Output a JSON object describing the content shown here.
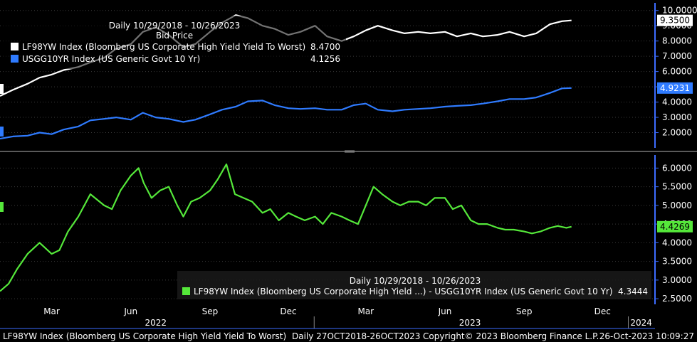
{
  "chart_data": [
    {
      "type": "line",
      "header": {
        "range": "Daily 10/29/2018 - 10/26/2023",
        "field": "Bid Price"
      },
      "ylim": [
        1.0,
        10.5
      ],
      "yticks": [
        "2.0000",
        "3.0000",
        "4.0000",
        "5.0000",
        "6.0000",
        "7.0000",
        "8.0000",
        "9.0000",
        "10.0000"
      ],
      "tick_values": [
        2,
        3,
        4,
        5,
        6,
        7,
        8,
        9,
        10
      ],
      "series": [
        {
          "name": "LF98YW Index (Bloomberg US Corporate High Yield Yield To Worst)",
          "legend_value": "8.4700",
          "last_label": "9.3500",
          "color": "#ffffff",
          "x": [
            "2021-12-31",
            "2022-01-15",
            "2022-02-01",
            "2022-02-15",
            "2022-03-01",
            "2022-03-15",
            "2022-04-01",
            "2022-04-15",
            "2022-05-01",
            "2022-05-15",
            "2022-06-01",
            "2022-06-15",
            "2022-06-30",
            "2022-07-15",
            "2022-08-01",
            "2022-08-15",
            "2022-09-01",
            "2022-09-15",
            "2022-10-01",
            "2022-10-15",
            "2022-11-01",
            "2022-11-15",
            "2022-12-01",
            "2022-12-15",
            "2023-01-01",
            "2023-01-15",
            "2023-02-01",
            "2023-02-15",
            "2023-03-01",
            "2023-03-15",
            "2023-04-01",
            "2023-04-15",
            "2023-05-01",
            "2023-05-15",
            "2023-06-01",
            "2023-06-15",
            "2023-07-01",
            "2023-07-15",
            "2023-08-01",
            "2023-08-15",
            "2023-09-01",
            "2023-09-15",
            "2023-10-01",
            "2023-10-15",
            "2023-10-26"
          ],
          "values": [
            4.4,
            4.8,
            5.2,
            5.6,
            5.8,
            6.1,
            6.3,
            6.6,
            6.9,
            7.5,
            7.8,
            8.6,
            8.9,
            8.4,
            7.6,
            7.8,
            8.6,
            9.2,
            9.7,
            9.5,
            9.0,
            8.8,
            8.4,
            8.6,
            9.0,
            8.3,
            8.0,
            8.3,
            8.7,
            9.0,
            8.7,
            8.5,
            8.6,
            8.5,
            8.6,
            8.3,
            8.5,
            8.3,
            8.4,
            8.6,
            8.3,
            8.5,
            9.1,
            9.3,
            9.35
          ]
        },
        {
          "name": "USGG10YR Index (US Generic Govt 10 Yr)",
          "legend_value": "4.1256",
          "last_label": "4.9231",
          "color": "#2f7bff",
          "x": [
            "2021-12-31",
            "2022-01-15",
            "2022-02-01",
            "2022-02-15",
            "2022-03-01",
            "2022-03-15",
            "2022-04-01",
            "2022-04-15",
            "2022-05-01",
            "2022-05-15",
            "2022-06-01",
            "2022-06-15",
            "2022-06-30",
            "2022-07-15",
            "2022-08-01",
            "2022-08-15",
            "2022-09-01",
            "2022-09-15",
            "2022-10-01",
            "2022-10-15",
            "2022-11-01",
            "2022-11-15",
            "2022-12-01",
            "2022-12-15",
            "2023-01-01",
            "2023-01-15",
            "2023-02-01",
            "2023-02-15",
            "2023-03-01",
            "2023-03-15",
            "2023-04-01",
            "2023-04-15",
            "2023-05-01",
            "2023-05-15",
            "2023-06-01",
            "2023-06-15",
            "2023-07-01",
            "2023-07-15",
            "2023-08-01",
            "2023-08-15",
            "2023-09-01",
            "2023-09-15",
            "2023-10-01",
            "2023-10-15",
            "2023-10-26"
          ],
          "values": [
            1.6,
            1.75,
            1.8,
            2.0,
            1.9,
            2.2,
            2.4,
            2.8,
            2.9,
            3.0,
            2.85,
            3.3,
            3.0,
            2.9,
            2.7,
            2.85,
            3.2,
            3.5,
            3.7,
            4.05,
            4.1,
            3.8,
            3.6,
            3.55,
            3.6,
            3.5,
            3.5,
            3.8,
            3.9,
            3.5,
            3.4,
            3.5,
            3.55,
            3.6,
            3.7,
            3.75,
            3.8,
            3.9,
            4.05,
            4.2,
            4.2,
            4.3,
            4.6,
            4.9,
            4.92
          ]
        }
      ]
    },
    {
      "type": "line",
      "header": {
        "range": "Daily 10/29/2018 - 10/26/2023"
      },
      "ylim": [
        2.35,
        6.35
      ],
      "yticks": [
        "2.5000",
        "3.0000",
        "3.5000",
        "4.0000",
        "4.5000",
        "5.0000",
        "5.5000",
        "6.0000"
      ],
      "tick_values": [
        2.5,
        3.0,
        3.5,
        4.0,
        4.5,
        5.0,
        5.5,
        6.0
      ],
      "series": [
        {
          "name": "LF98YW Index (Bloomberg US Corporate High Yield ...) - USGG10YR Index (US Generic Govt 10 Yr)",
          "legend_value": "4.3444",
          "last_label": "4.4269",
          "color": "#55e83a",
          "x": [
            "2021-12-31",
            "2022-01-10",
            "2022-01-20",
            "2022-02-01",
            "2022-02-15",
            "2022-03-01",
            "2022-03-10",
            "2022-03-20",
            "2022-04-01",
            "2022-04-15",
            "2022-05-01",
            "2022-05-10",
            "2022-05-20",
            "2022-06-01",
            "2022-06-10",
            "2022-06-16",
            "2022-06-25",
            "2022-07-05",
            "2022-07-15",
            "2022-07-25",
            "2022-08-01",
            "2022-08-10",
            "2022-08-20",
            "2022-09-01",
            "2022-09-10",
            "2022-09-20",
            "2022-09-30",
            "2022-10-10",
            "2022-10-20",
            "2022-11-01",
            "2022-11-10",
            "2022-11-20",
            "2022-12-01",
            "2022-12-10",
            "2022-12-20",
            "2023-01-01",
            "2023-01-10",
            "2023-01-20",
            "2023-02-01",
            "2023-02-10",
            "2023-02-20",
            "2023-03-01",
            "2023-03-10",
            "2023-03-20",
            "2023-04-01",
            "2023-04-10",
            "2023-04-20",
            "2023-05-01",
            "2023-05-10",
            "2023-05-20",
            "2023-06-01",
            "2023-06-10",
            "2023-06-20",
            "2023-07-01",
            "2023-07-10",
            "2023-07-20",
            "2023-08-01",
            "2023-08-10",
            "2023-08-20",
            "2023-09-01",
            "2023-09-10",
            "2023-09-20",
            "2023-10-01",
            "2023-10-10",
            "2023-10-20",
            "2023-10-26"
          ],
          "values": [
            2.7,
            2.9,
            3.3,
            3.7,
            4.0,
            3.7,
            3.8,
            4.3,
            4.7,
            5.3,
            5.0,
            4.9,
            5.4,
            5.8,
            6.0,
            5.6,
            5.2,
            5.4,
            5.5,
            5.0,
            4.7,
            5.1,
            5.2,
            5.4,
            5.7,
            6.1,
            5.3,
            5.2,
            5.1,
            4.8,
            4.9,
            4.6,
            4.8,
            4.7,
            4.6,
            4.7,
            4.5,
            4.8,
            4.7,
            4.6,
            4.5,
            5.0,
            5.5,
            5.3,
            5.1,
            5.0,
            5.1,
            5.1,
            5.0,
            5.2,
            5.2,
            4.9,
            5.0,
            4.6,
            4.5,
            4.5,
            4.4,
            4.35,
            4.35,
            4.3,
            4.25,
            4.3,
            4.4,
            4.45,
            4.4,
            4.43
          ]
        }
      ]
    }
  ],
  "axis": {
    "month_labels": [
      {
        "date": "2022-03-01",
        "label": "Mar"
      },
      {
        "date": "2022-06-01",
        "label": "Jun"
      },
      {
        "date": "2022-09-01",
        "label": "Sep"
      },
      {
        "date": "2022-12-01",
        "label": "Dec"
      },
      {
        "date": "2023-03-01",
        "label": "Mar"
      },
      {
        "date": "2023-06-01",
        "label": "Jun"
      },
      {
        "date": "2023-09-01",
        "label": "Sep"
      },
      {
        "date": "2023-12-01",
        "label": "Dec"
      }
    ],
    "year_labels": [
      {
        "date": "2022-06-30",
        "label": "2022"
      },
      {
        "date": "2023-06-30",
        "label": "2023"
      },
      {
        "date": "2024-01-15",
        "label": "2024"
      }
    ],
    "x_start": "2021-12-31",
    "x_end": "2024-01-31"
  },
  "footer": {
    "security": "LF98YW Index (Bloomberg US Corporate High Yield Yield To Worst)",
    "range": "Daily 27OCT2018-26OCT2023",
    "copyright": "Copyright© 2023 Bloomberg Finance L.P.",
    "timestamp": "26-Oct-2023 10:09:27"
  },
  "colors": {
    "background": "#000000",
    "axis_blue": "#3d6cff",
    "grid": "#3a3a3a",
    "panel_divider": "#5a5a5a"
  }
}
